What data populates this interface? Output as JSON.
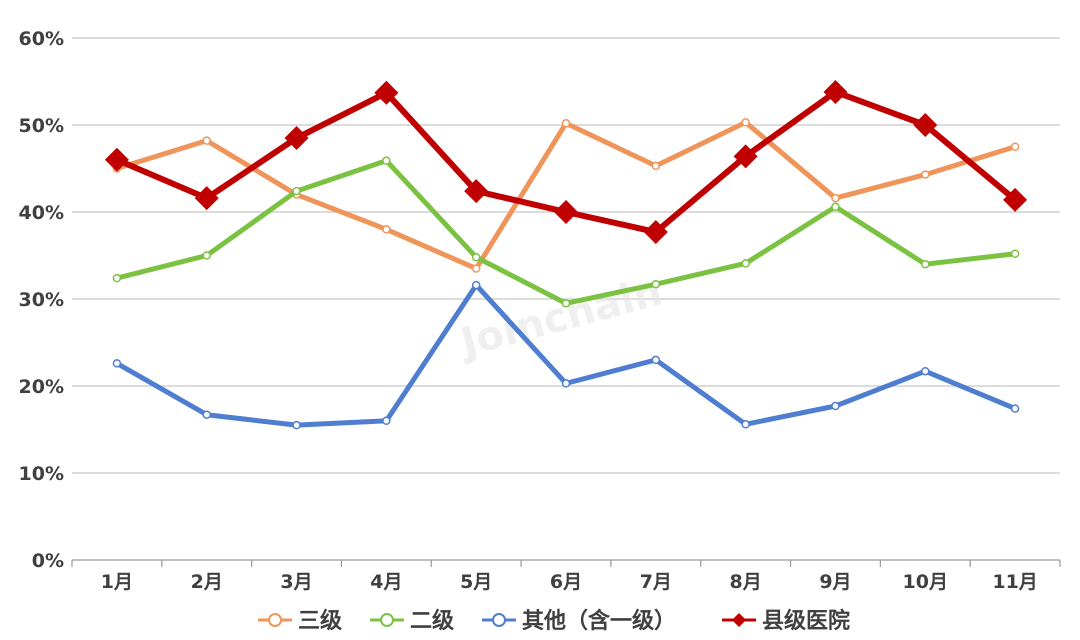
{
  "watermark": "Joinchain",
  "chart_data": {
    "type": "line",
    "categories": [
      "1月",
      "2月",
      "3月",
      "4月",
      "5月",
      "6月",
      "7月",
      "8月",
      "9月",
      "10月",
      "11月"
    ],
    "ylim": [
      0,
      60
    ],
    "yticks": [
      0,
      10,
      20,
      30,
      40,
      50,
      60
    ],
    "ytick_labels": [
      "0%",
      "10%",
      "20%",
      "30%",
      "40%",
      "50%",
      "60%"
    ],
    "grid": true,
    "legend_position": "bottom",
    "series": [
      {
        "name": "三级",
        "color": "#f0955a",
        "marker": "circle",
        "values": [
          45.0,
          48.2,
          42.0,
          38.0,
          33.5,
          50.2,
          45.3,
          50.3,
          41.6,
          44.3,
          47.5
        ]
      },
      {
        "name": "二级",
        "color": "#7cc242",
        "marker": "circle",
        "values": [
          32.4,
          35.0,
          42.4,
          45.9,
          34.8,
          29.5,
          31.7,
          34.1,
          40.6,
          34.0,
          35.2
        ]
      },
      {
        "name": "其他（含一级）",
        "color": "#4f7ed0",
        "marker": "circle",
        "values": [
          22.6,
          16.7,
          15.5,
          16.0,
          31.6,
          20.3,
          23.0,
          15.6,
          17.7,
          21.7,
          17.4
        ]
      },
      {
        "name": "县级医院",
        "color": "#c00000",
        "marker": "diamond",
        "values": [
          46.0,
          41.6,
          48.5,
          53.7,
          42.4,
          40.0,
          37.7,
          46.4,
          53.8,
          50.0,
          41.4
        ]
      }
    ]
  }
}
